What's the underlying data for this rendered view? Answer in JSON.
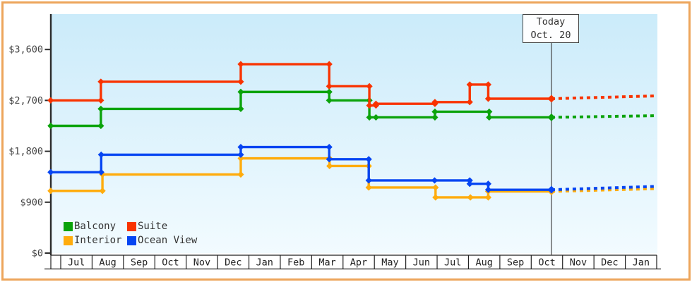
{
  "today_marker": {
    "line1": "Today",
    "line2": "Oct. 20"
  },
  "legend": {
    "items": [
      {
        "label": "Balcony",
        "color": "#0BA30B"
      },
      {
        "label": "Suite",
        "color": "#F93300"
      },
      {
        "label": "Interior",
        "color": "#FFAC0D"
      },
      {
        "label": "Ocean View",
        "color": "#0645F2"
      }
    ]
  },
  "colors": {
    "frame": "#EDA55B",
    "plot_bg_top": "#CBEBFA",
    "plot_bg_bottom": "#F2FBFF",
    "axis": "#2B2B2B",
    "label_text": "#444444",
    "month_text": "#222222",
    "today_line": "#444444"
  },
  "chart_data": {
    "type": "line",
    "style": "step-price-history",
    "title": "",
    "xlabel": "",
    "ylabel": "",
    "months": [
      "Jul",
      "Aug",
      "Sep",
      "Oct",
      "Nov",
      "Dec",
      "Jan",
      "Feb",
      "Mar",
      "Apr",
      "May",
      "Jun",
      "Jul",
      "Aug",
      "Sep",
      "Oct",
      "Nov",
      "Dec",
      "Jan"
    ],
    "yticks": [
      0,
      900,
      1800,
      2700,
      3600
    ],
    "ytick_labels": [
      "$0",
      "$900",
      "$1,800",
      "$2,700",
      "$3,600"
    ],
    "ylim": [
      0,
      3900
    ],
    "x_unit": "months-from-first-Jul",
    "today": {
      "t": 15.645,
      "label": "Oct. 20"
    },
    "series": [
      {
        "name": "Balcony",
        "color": "#0BA30B",
        "points": [
          [
            -0.32,
            2250
          ],
          [
            1.28,
            2550
          ],
          [
            5.74,
            2850
          ],
          [
            8.56,
            2700
          ],
          [
            9.84,
            2400
          ],
          [
            10.05,
            2400
          ],
          [
            11.93,
            2500
          ],
          [
            13.66,
            2400
          ]
        ],
        "projection_end": [
          19.0,
          2430
        ]
      },
      {
        "name": "Suite",
        "color": "#F93300",
        "points": [
          [
            -0.32,
            2700
          ],
          [
            1.28,
            3030
          ],
          [
            5.74,
            3340
          ],
          [
            8.56,
            2950
          ],
          [
            9.84,
            2610
          ],
          [
            10.05,
            2640
          ],
          [
            11.93,
            2670
          ],
          [
            13.04,
            2980
          ],
          [
            13.63,
            2730
          ]
        ],
        "projection_end": [
          19.0,
          2780
        ]
      },
      {
        "name": "Interior",
        "color": "#FFAC0D",
        "points": [
          [
            -0.32,
            1100
          ],
          [
            1.33,
            1390
          ],
          [
            5.74,
            1675
          ],
          [
            8.57,
            1540
          ],
          [
            9.82,
            1160
          ],
          [
            11.95,
            985
          ],
          [
            13.06,
            985
          ],
          [
            13.63,
            1090
          ]
        ],
        "projection_end": [
          19.0,
          1140
        ]
      },
      {
        "name": "Ocean View",
        "color": "#0645F2",
        "points": [
          [
            -0.32,
            1430
          ],
          [
            1.29,
            1740
          ],
          [
            5.74,
            1875
          ],
          [
            8.56,
            1660
          ],
          [
            9.82,
            1285
          ],
          [
            11.92,
            1285
          ],
          [
            13.04,
            1225
          ],
          [
            13.63,
            1120
          ]
        ],
        "projection_end": [
          19.0,
          1180
        ]
      }
    ]
  }
}
